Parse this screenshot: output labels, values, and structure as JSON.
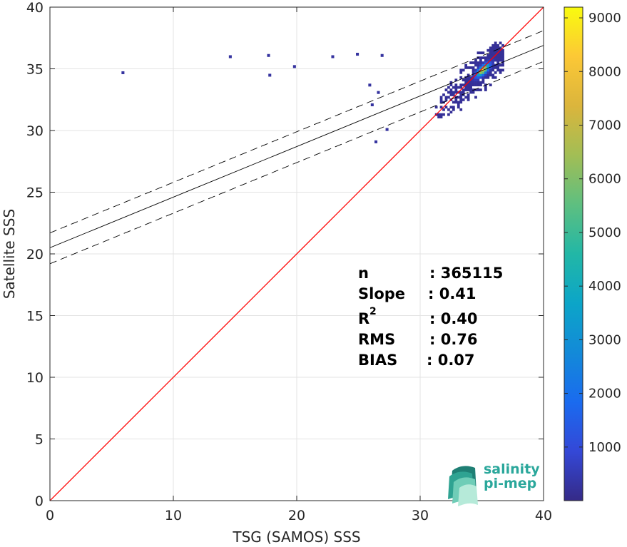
{
  "chart_data": {
    "type": "heatmap",
    "title": "",
    "xlabel": "TSG (SAMOS) SSS",
    "ylabel": "Satellite SSS",
    "xlim": [
      0,
      40
    ],
    "ylim": [
      0,
      40
    ],
    "xticks": [
      0,
      10,
      20,
      30,
      40
    ],
    "yticks": [
      0,
      5,
      10,
      15,
      20,
      25,
      30,
      35,
      40
    ],
    "grid": true,
    "colormap": "parula",
    "colorbar": {
      "ticks": [
        1000,
        2000,
        3000,
        4000,
        5000,
        6000,
        7000,
        8000,
        9000
      ],
      "range": [
        1,
        9200
      ]
    },
    "lines": [
      {
        "name": "identity",
        "slope": 1,
        "intercept": 0,
        "color": "#ff0000",
        "style": "solid"
      },
      {
        "name": "fit",
        "slope": 0.41,
        "intercept": 20.5,
        "color": "#000000",
        "style": "solid"
      },
      {
        "name": "fit-upper",
        "slope": 0.41,
        "intercept": 21.7,
        "color": "#000000",
        "style": "dashed"
      },
      {
        "name": "fit-lower",
        "slope": 0.41,
        "intercept": 19.2,
        "color": "#000000",
        "style": "dashed"
      }
    ],
    "density": {
      "main_cluster_center": [
        35.0,
        34.8
      ],
      "peak_count": 9200,
      "outliers": [
        [
          5.8,
          34.6
        ],
        [
          14.5,
          35.9
        ],
        [
          17.6,
          36.0
        ],
        [
          17.7,
          34.4
        ],
        [
          19.7,
          35.1
        ],
        [
          22.8,
          35.9
        ],
        [
          24.8,
          36.1
        ],
        [
          26.8,
          36.0
        ],
        [
          25.8,
          33.6
        ],
        [
          26.5,
          33.0
        ],
        [
          26.0,
          32.0
        ],
        [
          26.3,
          29.0
        ],
        [
          27.2,
          30.0
        ]
      ]
    },
    "stats": {
      "n_label": "n",
      "n": ": 365115",
      "slope_label": "Slope",
      "slope": ": 0.41",
      "r2_label": "R",
      "r2_sup": "2",
      "r2": ": 0.40",
      "rms_label": "RMS",
      "rms": ": 0.76",
      "bias_label": "BIAS",
      "bias": ": 0.07"
    }
  },
  "logo": {
    "line1": "salinity",
    "line2": "pi-mep"
  }
}
